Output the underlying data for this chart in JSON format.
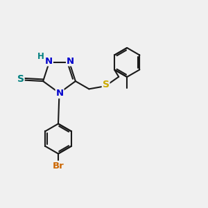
{
  "bg_color": "#f0f0f0",
  "bond_color": "#1a1a1a",
  "bond_width": 1.5,
  "N_color": "#0000cc",
  "S_color": "#ccaa00",
  "SH_color": "#008080",
  "Br_color": "#cc6600",
  "H_color": "#008080",
  "figsize": [
    3.0,
    3.0
  ],
  "dpi": 100,
  "xlim": [
    0,
    10
  ],
  "ylim": [
    0,
    10
  ]
}
